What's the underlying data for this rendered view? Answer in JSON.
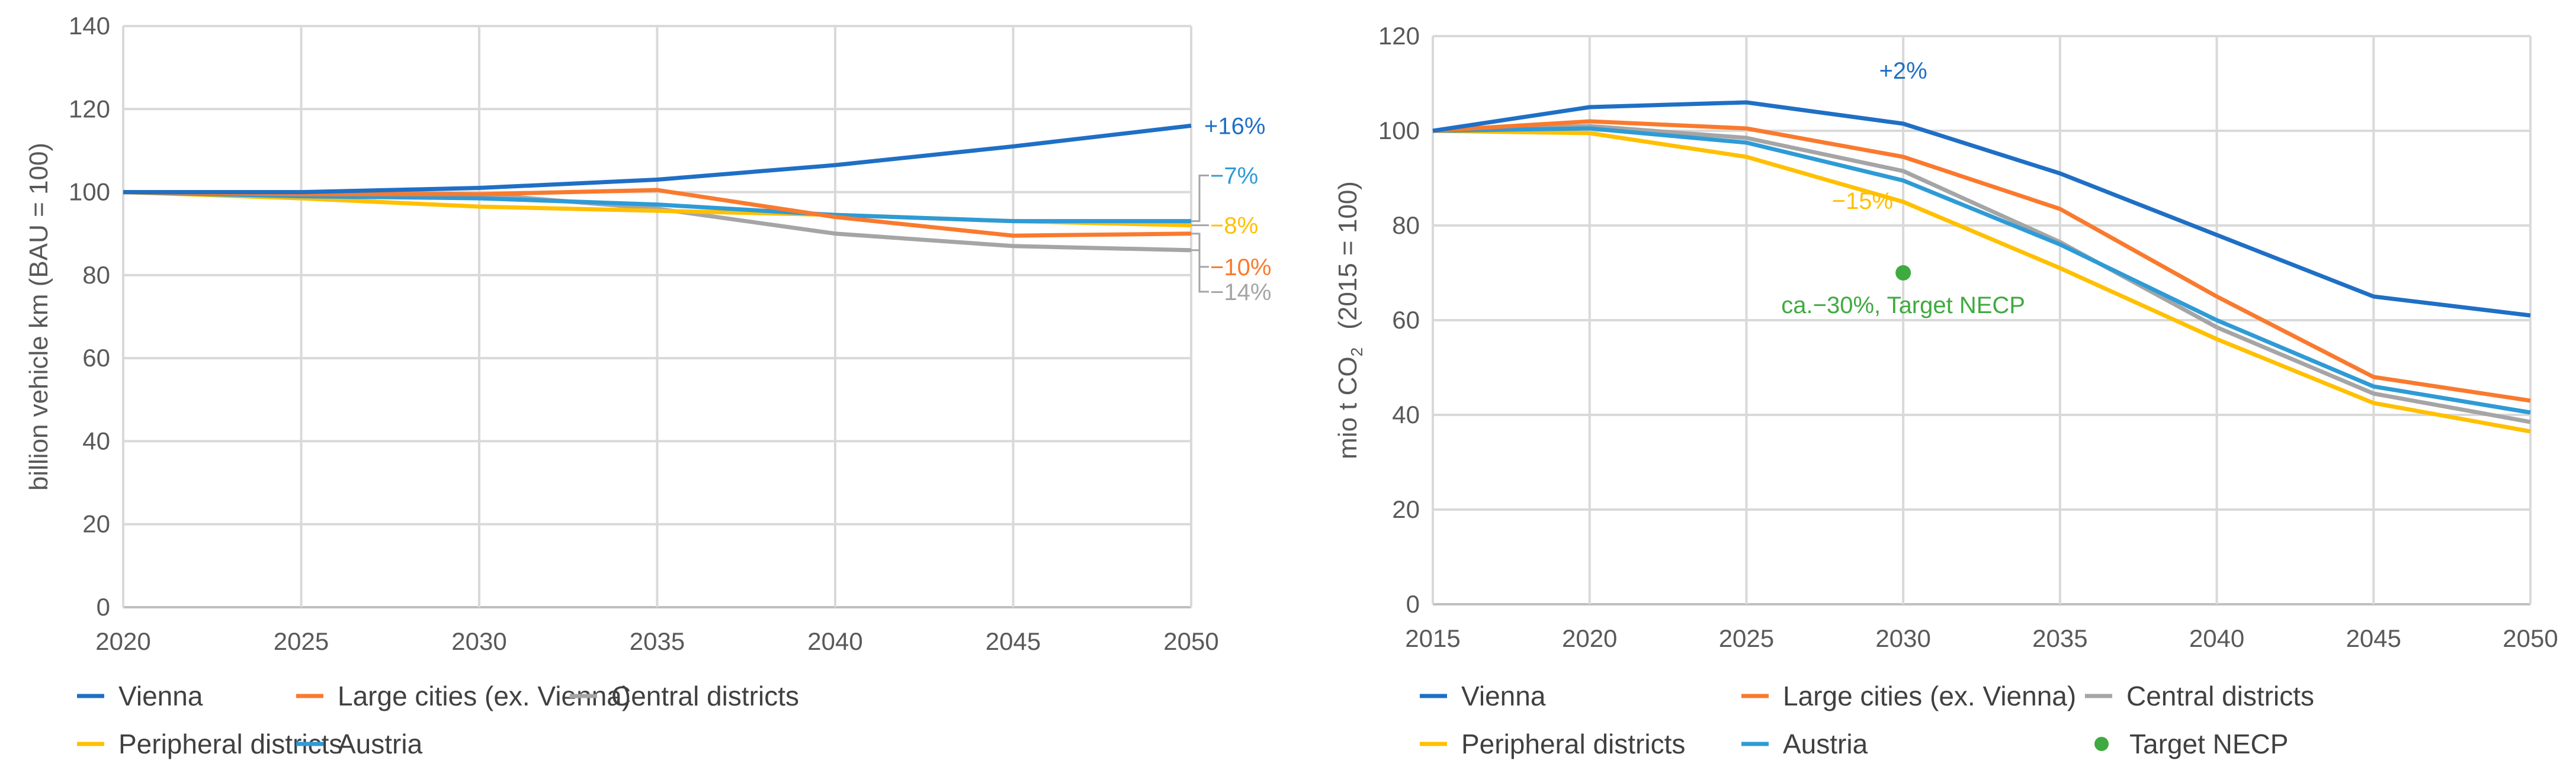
{
  "chart_data": [
    {
      "type": "line",
      "ylabel": "billion vehicle km (BAU = 100)",
      "xlabel": "",
      "x": [
        2020,
        2025,
        2030,
        2035,
        2040,
        2045,
        2050
      ],
      "ylim": [
        0,
        140
      ],
      "yticks": [
        0,
        20,
        40,
        60,
        80,
        100,
        120,
        140
      ],
      "grid": true,
      "legend_position": "bottom",
      "series": [
        {
          "name": "Vienna",
          "color": "#1F6FC5",
          "values": [
            100,
            100,
            101,
            103,
            106.5,
            111,
            116
          ]
        },
        {
          "name": "Large cities (ex. Vienna)",
          "color": "#F97A2E",
          "values": [
            100,
            99.5,
            99.5,
            100.5,
            94,
            89.5,
            90
          ]
        },
        {
          "name": "Central districts",
          "color": "#A5A5A5",
          "values": [
            100,
            100,
            99.5,
            96,
            90,
            87,
            86
          ]
        },
        {
          "name": "Peripheral districts",
          "color": "#FFC000",
          "values": [
            100,
            98.5,
            96.5,
            95.5,
            94.5,
            93,
            92
          ]
        },
        {
          "name": "Austria",
          "color": "#2E9BD6",
          "values": [
            100,
            99,
            98.5,
            97,
            94.5,
            93,
            93
          ]
        }
      ],
      "annotations": [
        {
          "text": "+16%",
          "color": "#1F6FC5"
        },
        {
          "text": "−7%",
          "color": "#2E9BD6"
        },
        {
          "text": "−8%",
          "color": "#FFC000"
        },
        {
          "text": "−10%",
          "color": "#F97A2E"
        },
        {
          "text": "−14%",
          "color": "#A5A5A5"
        }
      ]
    },
    {
      "type": "line",
      "ylabel": "mio t CO",
      "ylabel_sub": "2",
      "ylabel_suffix": "(2015 = 100)",
      "xlabel": "",
      "x": [
        2015,
        2020,
        2025,
        2030,
        2035,
        2040,
        2045,
        2050
      ],
      "ylim": [
        0,
        120
      ],
      "yticks": [
        0,
        20,
        40,
        60,
        80,
        100,
        120
      ],
      "grid": true,
      "legend_position": "bottom",
      "series": [
        {
          "name": "Vienna",
          "color": "#1F6FC5",
          "values": [
            100,
            105,
            106,
            101.5,
            91,
            78,
            65,
            61
          ]
        },
        {
          "name": "Large cities (ex. Vienna)",
          "color": "#F97A2E",
          "values": [
            100,
            102,
            100.5,
            94.5,
            83.5,
            65,
            48,
            43
          ]
        },
        {
          "name": "Central districts",
          "color": "#A5A5A5",
          "values": [
            100,
            101,
            98.5,
            91.5,
            76.5,
            58.5,
            44.5,
            38.5
          ]
        },
        {
          "name": "Peripheral districts",
          "color": "#FFC000",
          "values": [
            100,
            99.5,
            94.5,
            85,
            71,
            56,
            42.5,
            36.5
          ]
        },
        {
          "name": "Austria",
          "color": "#2E9BD6",
          "values": [
            100,
            100.5,
            97.5,
            89.5,
            76,
            60,
            46,
            40.5
          ]
        }
      ],
      "points": [
        {
          "name": "Target NECP",
          "color": "#3FAA3F",
          "x": 2030,
          "y": 70
        }
      ],
      "annotations": [
        {
          "text": "+2%",
          "color": "#1F6FC5"
        },
        {
          "text": "−15%",
          "color": "#FFC000"
        },
        {
          "text": "ca.−30%, Target NECP",
          "color": "#3FAA3F"
        }
      ]
    }
  ]
}
